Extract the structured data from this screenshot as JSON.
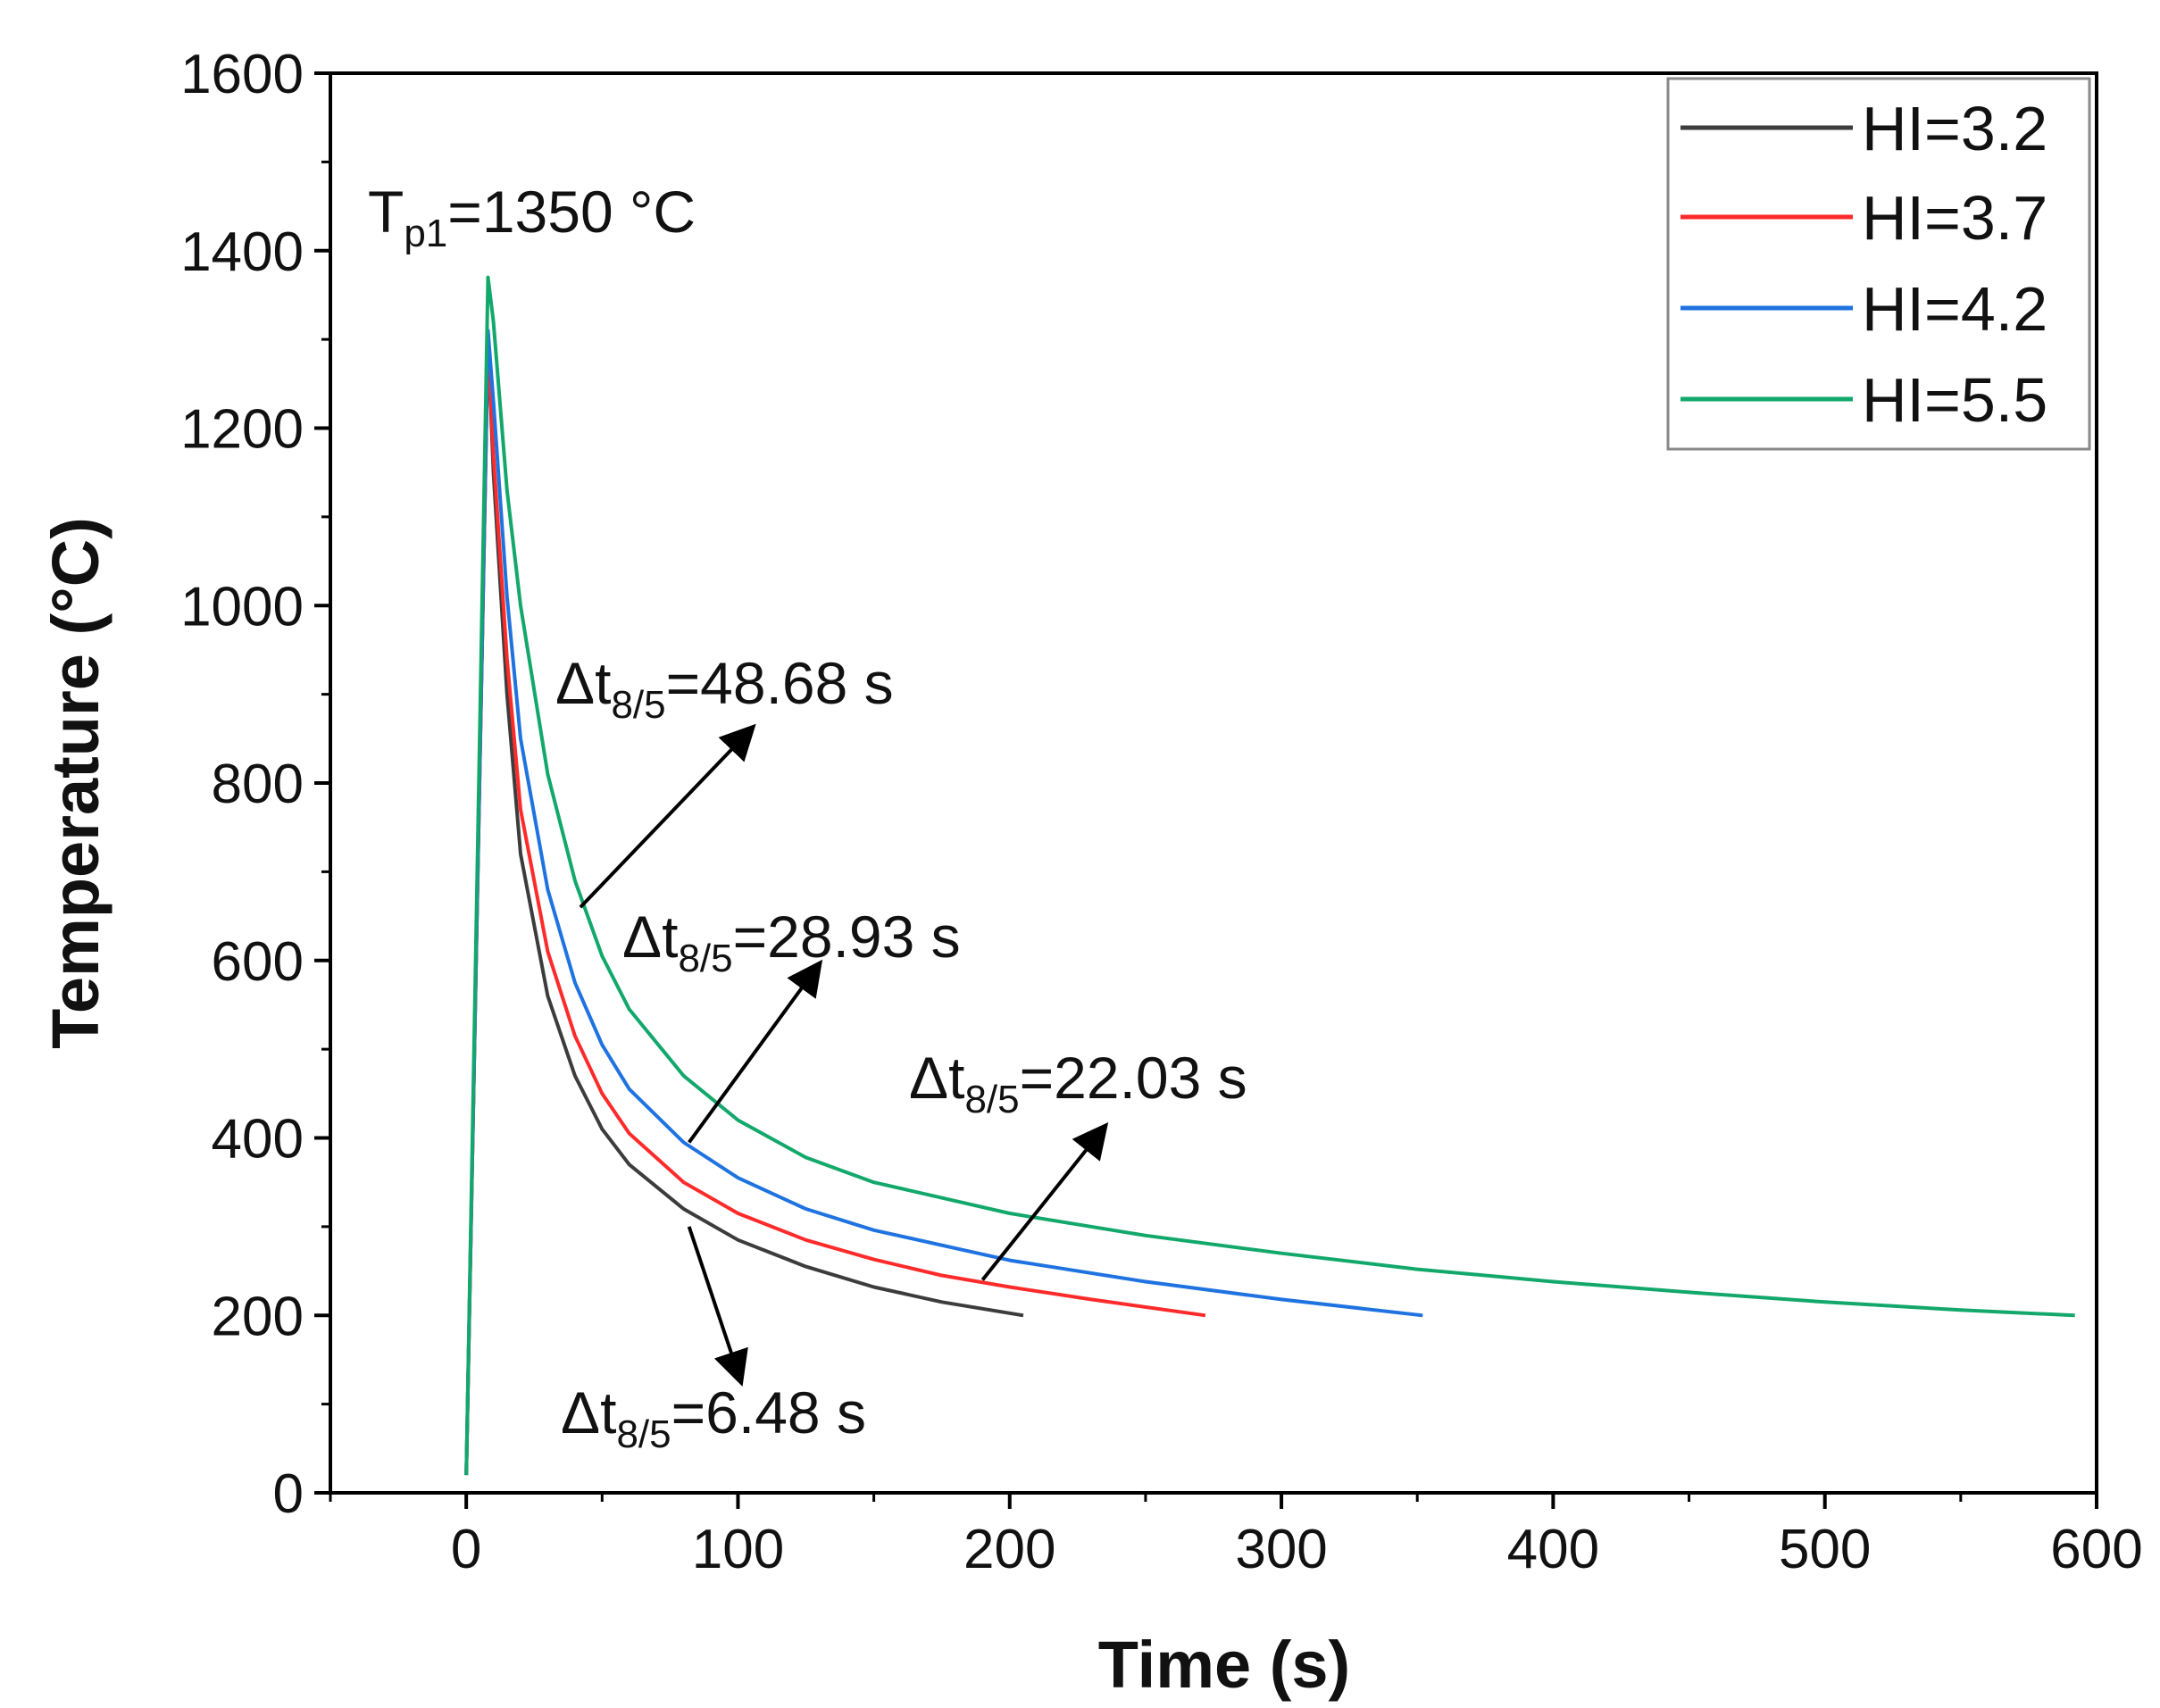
{
  "chart_data": {
    "type": "line",
    "title": "",
    "xlabel": "Time (s)",
    "ylabel": "Temperature (°C)",
    "xlim": [
      -50,
      600
    ],
    "ylim": [
      0,
      1600
    ],
    "xticks": [
      0,
      100,
      200,
      300,
      400,
      500,
      600
    ],
    "yticks": [
      0,
      200,
      400,
      600,
      800,
      1000,
      1200,
      1400,
      1600
    ],
    "legend_position": "top-right",
    "series": [
      {
        "name": "HI=3.2",
        "color": "#3c3c3c",
        "x": [
          0,
          8,
          10,
          15,
          20,
          30,
          40,
          50,
          60,
          80,
          100,
          125,
          150,
          175,
          205
        ],
        "y": [
          20,
          1300,
          1150,
          900,
          720,
          560,
          470,
          410,
          370,
          320,
          285,
          255,
          232,
          215,
          200
        ]
      },
      {
        "name": "HI=3.7",
        "color": "#ff2b2b",
        "x": [
          0,
          8,
          10,
          15,
          20,
          30,
          40,
          50,
          60,
          80,
          100,
          125,
          150,
          175,
          200,
          230,
          272
        ],
        "y": [
          20,
          1300,
          1170,
          940,
          770,
          610,
          515,
          450,
          405,
          350,
          315,
          285,
          263,
          245,
          232,
          218,
          200
        ]
      },
      {
        "name": "HI=4.2",
        "color": "#1f73e0",
        "x": [
          0,
          8,
          10,
          15,
          20,
          30,
          40,
          50,
          60,
          80,
          100,
          125,
          150,
          200,
          250,
          300,
          352
        ],
        "y": [
          20,
          1310,
          1230,
          1010,
          850,
          680,
          575,
          505,
          455,
          395,
          355,
          320,
          296,
          262,
          238,
          218,
          200
        ]
      },
      {
        "name": "HI=5.5",
        "color": "#13a86b",
        "x": [
          0,
          8,
          10,
          15,
          20,
          30,
          40,
          50,
          60,
          80,
          100,
          125,
          150,
          200,
          250,
          300,
          350,
          400,
          450,
          500,
          550,
          592
        ],
        "y": [
          20,
          1370,
          1320,
          1130,
          1000,
          810,
          690,
          605,
          545,
          470,
          420,
          378,
          350,
          315,
          290,
          270,
          252,
          238,
          226,
          215,
          206,
          200
        ]
      }
    ],
    "annotations": [
      {
        "id": "peak",
        "main": "T",
        "sub": "p1",
        "tail": "=1350 °C"
      },
      {
        "id": "hi55",
        "main": "Δt",
        "sub": "8/5",
        "tail": "=48.68 s",
        "arrow_from": [
          42,
          660
        ],
        "arrow_to": [
          103,
          855
        ]
      },
      {
        "id": "hi42",
        "main": "Δt",
        "sub": "8/5",
        "tail": "=28.93 s",
        "arrow_from": [
          82,
          395
        ],
        "arrow_to": [
          128,
          588
        ]
      },
      {
        "id": "hi37",
        "main": "Δt",
        "sub": "8/5",
        "tail": "=22.03 s",
        "arrow_from": [
          190,
          240
        ],
        "arrow_to": [
          233,
          405
        ]
      },
      {
        "id": "hi32",
        "main": "Δt",
        "sub": "8/5",
        "tail": "=6.48 s",
        "arrow_from": [
          82,
          300
        ],
        "arrow_to": [
          100,
          135
        ]
      }
    ]
  }
}
